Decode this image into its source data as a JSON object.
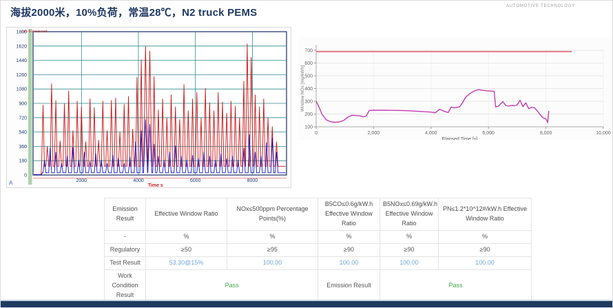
{
  "title": "海拔2000米，10%负荷，常温28℃，N2 truck PEMS",
  "brand": "AUTOMOTIVE TECHNOLOGY",
  "colors": {
    "title_navy": "#1f3864",
    "grid_teal": "#2e8b8b",
    "trace_red": "#cc1313",
    "trace_blue": "#1414cc",
    "window_magenta": "#c23cb4",
    "limit_pink": "#e57b86",
    "pass_green": "#3faa4f",
    "result_blue": "#6fa8dc"
  },
  "chart_data": {
    "left_chart": {
      "type": "line",
      "legend": "Lim & measured",
      "xlabel": "Time  s",
      "corner_marker": "A",
      "xlim": [
        300,
        9200
      ],
      "ylim": [
        0,
        1800
      ],
      "yticks": [
        0,
        180,
        360,
        540,
        720,
        900,
        1080,
        1260,
        1440,
        1620,
        1800
      ],
      "xticks": [
        2000,
        4000,
        6000,
        8000
      ],
      "grid": true,
      "series": [
        {
          "name": "red-trace",
          "color": "#cc1313",
          "baseline": 110,
          "t_start": 600,
          "spikes": [
            [
              650,
              880
            ],
            [
              800,
              360
            ],
            [
              950,
              1150
            ],
            [
              1100,
              940
            ],
            [
              1250,
              430
            ],
            [
              1400,
              900
            ],
            [
              1550,
              1060
            ],
            [
              1700,
              560
            ],
            [
              1850,
              930
            ],
            [
              2000,
              860
            ],
            [
              2150,
              420
            ],
            [
              2300,
              960
            ],
            [
              2450,
              850
            ],
            [
              2600,
              440
            ],
            [
              2750,
              930
            ],
            [
              2900,
              560
            ],
            [
              3050,
              940
            ],
            [
              3200,
              970
            ],
            [
              3350,
              540
            ],
            [
              3500,
              890
            ],
            [
              3650,
              990
            ],
            [
              3800,
              580
            ],
            [
              3950,
              1230
            ],
            [
              4100,
              1450
            ],
            [
              4250,
              1620,
              70
            ],
            [
              4400,
              1560,
              70
            ],
            [
              4550,
              1240
            ],
            [
              4700,
              820
            ],
            [
              4850,
              960
            ],
            [
              5000,
              720
            ],
            [
              5150,
              1010
            ],
            [
              5300,
              860
            ],
            [
              5450,
              700
            ],
            [
              5600,
              1140
            ],
            [
              5750,
              810
            ],
            [
              5900,
              960
            ],
            [
              6050,
              1040
            ],
            [
              6200,
              720
            ],
            [
              6350,
              1090
            ],
            [
              6500,
              910
            ],
            [
              6650,
              810
            ],
            [
              6800,
              1040
            ],
            [
              6950,
              920
            ],
            [
              7100,
              780
            ],
            [
              7250,
              930
            ],
            [
              7400,
              870
            ],
            [
              7550,
              720
            ],
            [
              7700,
              1180
            ],
            [
              7820,
              1650,
              60
            ],
            [
              7960,
              1480,
              60
            ],
            [
              8100,
              1010
            ],
            [
              8250,
              860
            ],
            [
              8400,
              960
            ],
            [
              8550,
              720
            ],
            [
              8700,
              610
            ],
            [
              8850,
              420
            ]
          ]
        },
        {
          "name": "blue-trace",
          "color": "#1414cc",
          "baseline": 28,
          "t_start": 620,
          "spikes": [
            [
              700,
              190
            ],
            [
              900,
              340
            ],
            [
              1100,
              290
            ],
            [
              1300,
              150
            ],
            [
              1500,
              240
            ],
            [
              1700,
              350
            ],
            [
              1900,
              190
            ],
            [
              2100,
              290
            ],
            [
              2300,
              170
            ],
            [
              2500,
              270
            ],
            [
              2700,
              190
            ],
            [
              2900,
              150
            ],
            [
              3100,
              250
            ],
            [
              3300,
              210
            ],
            [
              3500,
              150
            ],
            [
              3700,
              230
            ],
            [
              3900,
              420
            ],
            [
              4100,
              560
            ],
            [
              4250,
              700,
              70
            ],
            [
              4400,
              640,
              70
            ],
            [
              4550,
              390
            ],
            [
              4700,
              240
            ],
            [
              4900,
              190
            ],
            [
              5100,
              290
            ],
            [
              5300,
              370
            ],
            [
              5500,
              240
            ],
            [
              5700,
              190
            ],
            [
              5900,
              250
            ],
            [
              6100,
              210
            ],
            [
              6300,
              290
            ],
            [
              6500,
              240
            ],
            [
              6700,
              190
            ],
            [
              6900,
              270
            ],
            [
              7100,
              210
            ],
            [
              7300,
              240
            ],
            [
              7500,
              190
            ],
            [
              7700,
              340
            ],
            [
              7900,
              510
            ],
            [
              8100,
              290
            ],
            [
              8300,
              240
            ],
            [
              8500,
              410
            ],
            [
              8700,
              470
            ],
            [
              8850,
              290
            ]
          ]
        }
      ]
    },
    "right_chart": {
      "type": "line",
      "ylabel": "Window NOx [mg/kWh]",
      "xlabel": "Elapsed Time [s]",
      "xlim": [
        0,
        10000
      ],
      "ylim": [
        100,
        700
      ],
      "yticks": [
        100,
        200,
        300,
        400,
        500,
        600,
        700
      ],
      "xtick_values": [
        0,
        2000,
        4000,
        6000,
        8000,
        10000
      ],
      "xtick_labels": [
        "0",
        "2,000",
        "4,000",
        "6,000",
        "8,000",
        "10,000"
      ],
      "grid": true,
      "limit": {
        "value": 690,
        "x_start": 0,
        "x_end": 8900,
        "color": "#e57b86"
      },
      "series": [
        {
          "name": "window-nox",
          "color": "#c23cb4",
          "points": [
            [
              0,
              300
            ],
            [
              100,
              255
            ],
            [
              200,
              200
            ],
            [
              350,
              155
            ],
            [
              500,
              140
            ],
            [
              650,
              135
            ],
            [
              800,
              138
            ],
            [
              950,
              148
            ],
            [
              1100,
              175
            ],
            [
              1250,
              190
            ],
            [
              1400,
              188
            ],
            [
              1550,
              185
            ],
            [
              1650,
              178
            ],
            [
              1750,
              186
            ],
            [
              1850,
              228
            ],
            [
              2000,
              230
            ],
            [
              2300,
              230
            ],
            [
              2600,
              229
            ],
            [
              2900,
              228
            ],
            [
              3200,
              226
            ],
            [
              3500,
              222
            ],
            [
              3800,
              218
            ],
            [
              4000,
              215
            ],
            [
              4150,
              210
            ],
            [
              4300,
              238
            ],
            [
              4450,
              222
            ],
            [
              4600,
              212
            ],
            [
              4700,
              255
            ],
            [
              4800,
              248
            ],
            [
              4900,
              252
            ],
            [
              5000,
              258
            ],
            [
              5100,
              290
            ],
            [
              5200,
              330
            ],
            [
              5350,
              360
            ],
            [
              5500,
              380
            ],
            [
              5650,
              392
            ],
            [
              5800,
              386
            ],
            [
              5950,
              382
            ],
            [
              6100,
              380
            ],
            [
              6200,
              378
            ],
            [
              6250,
              255
            ],
            [
              6350,
              262
            ],
            [
              6500,
              298
            ],
            [
              6600,
              268
            ],
            [
              6700,
              262
            ],
            [
              6800,
              268
            ],
            [
              6900,
              265
            ],
            [
              7000,
              272
            ],
            [
              7100,
              308
            ],
            [
              7200,
              258
            ],
            [
              7300,
              288
            ],
            [
              7400,
              242
            ],
            [
              7500,
              252
            ],
            [
              7600,
              250
            ],
            [
              7700,
              225
            ],
            [
              7800,
              195
            ],
            [
              7900,
              170
            ],
            [
              8000,
              162
            ],
            [
              8050,
              140
            ],
            [
              8060,
              132
            ],
            [
              8100,
              225
            ]
          ]
        }
      ]
    }
  },
  "table": {
    "header": [
      "Emission Result",
      "Effective Window Ratio",
      "NOx≤500ppm Percentage Points(%)",
      "B5CO≤0.6g/kW.h Effective Window Ratio",
      "B5NOx≤0.69g/kW.h Effective Window Ratio",
      "PN≤1.2*10^12#/kW.h Effective Window Ratio"
    ],
    "units": [
      "-",
      "%",
      "%",
      "%",
      "%",
      "%"
    ],
    "regulatory": {
      "label": "Regulatory",
      "values": [
        "≥50",
        "≥95",
        "≥90",
        "≥90",
        "≥90"
      ]
    },
    "test_result": {
      "label": "Test Result",
      "values": [
        "53.30@15%",
        "100.00",
        "100.00",
        "100.00",
        "100.00"
      ]
    },
    "final": {
      "label": "Work Condition Result",
      "pass1": "Pass",
      "mid_label": "Emission Result",
      "pass2": "Pass"
    }
  }
}
